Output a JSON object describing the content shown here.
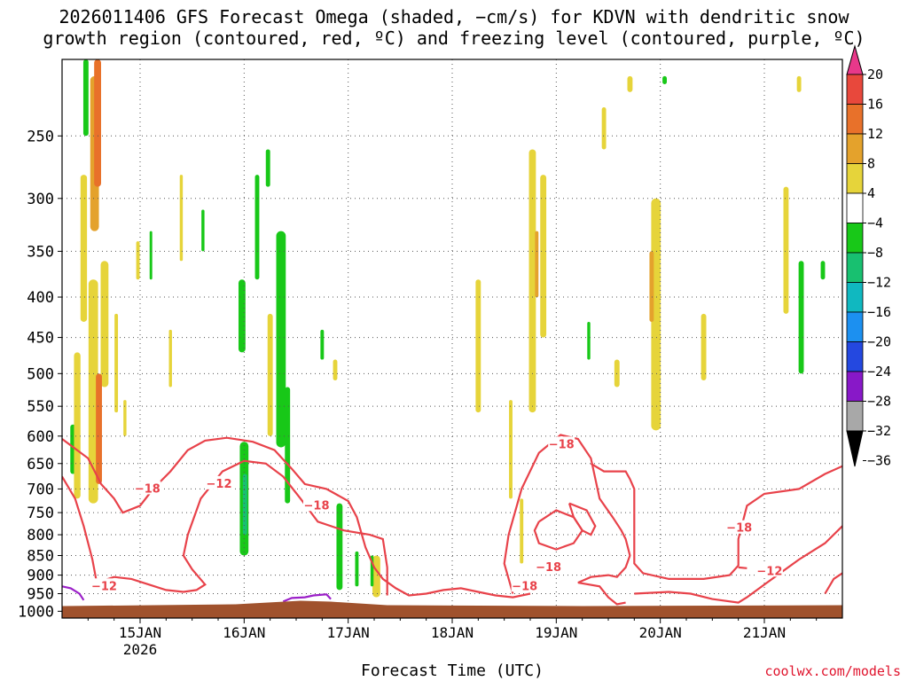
{
  "title": {
    "line1": "2026011406 GFS Forecast Omega (shaded, −cm/s) for KDVN with dendritic snow",
    "line2": "growth region (contoured, red, ºC) and freezing level (contoured, purple, ºC)"
  },
  "credit": "coolwx.com/models",
  "chart_data": {
    "type": "heatmap",
    "title": "2026011406 GFS Forecast Omega (shaded, −cm/s) for KDVN with dendritic snow growth region (contoured, red, ºC) and freezing level (contoured, purple, ºC)",
    "xlabel": "Forecast Time (UTC)",
    "ylabel": "",
    "x_ticks": [
      {
        "label": "15JAN",
        "sublabel": "2026",
        "hours": 18
      },
      {
        "label": "16JAN",
        "hours": 42
      },
      {
        "label": "17JAN",
        "hours": 66
      },
      {
        "label": "18JAN",
        "hours": 90
      },
      {
        "label": "19JAN",
        "hours": 114
      },
      {
        "label": "20JAN",
        "hours": 138
      },
      {
        "label": "21JAN",
        "hours": 162
      }
    ],
    "xlim_hours": [
      0,
      180
    ],
    "y_axis": {
      "scale": "log-pressure",
      "units": "hPa",
      "ylim": [
        1020,
        200
      ],
      "ticks": [
        250,
        300,
        350,
        400,
        450,
        500,
        550,
        600,
        650,
        700,
        750,
        800,
        850,
        900,
        950,
        1000
      ]
    },
    "grid": true,
    "colorbar": {
      "labels": [
        "20",
        "16",
        "12",
        "8",
        "4",
        "−4",
        "−8",
        "−12",
        "−16",
        "−20",
        "−24",
        "−28",
        "−32",
        "−36"
      ],
      "colors": [
        "#e8388a",
        "#e8483c",
        "#e8712a",
        "#e4a22c",
        "#e6d43a",
        "#ffffff",
        "#18c818",
        "#18c070",
        "#10b8c0",
        "#1c90f0",
        "#2448e0",
        "#8818c8",
        "#a8a8a8",
        "#000000"
      ]
    },
    "omega_patches": [
      {
        "t": 2.5,
        "p0": 580,
        "p1": 670,
        "w": 1.2,
        "v": -6
      },
      {
        "t": 3.5,
        "p0": 470,
        "p1": 720,
        "w": 1.5,
        "v": 6
      },
      {
        "t": 5.0,
        "p0": 280,
        "p1": 430,
        "w": 1.5,
        "v": 5
      },
      {
        "t": 5.5,
        "p0": 200,
        "p1": 250,
        "w": 1.2,
        "v": -6
      },
      {
        "t": 7.2,
        "p0": 380,
        "p1": 730,
        "w": 2.2,
        "v": 6
      },
      {
        "t": 7.5,
        "p0": 210,
        "p1": 330,
        "w": 2.0,
        "v": 8
      },
      {
        "t": 8.2,
        "p0": 200,
        "p1": 290,
        "w": 1.6,
        "v": 12
      },
      {
        "t": 9.8,
        "p0": 360,
        "p1": 520,
        "w": 1.8,
        "v": 7
      },
      {
        "t": 8.5,
        "p0": 500,
        "p1": 690,
        "w": 1.4,
        "v": 12
      },
      {
        "t": 12.5,
        "p0": 420,
        "p1": 560,
        "w": 0.8,
        "v": 5
      },
      {
        "t": 14.5,
        "p0": 540,
        "p1": 600,
        "w": 0.7,
        "v": 5
      },
      {
        "t": 17.5,
        "p0": 340,
        "p1": 380,
        "w": 0.8,
        "v": 5
      },
      {
        "t": 20.5,
        "p0": 330,
        "p1": 380,
        "w": 0.6,
        "v": -6
      },
      {
        "t": 25.0,
        "p0": 440,
        "p1": 520,
        "w": 0.7,
        "v": 5
      },
      {
        "t": 27.5,
        "p0": 280,
        "p1": 360,
        "w": 0.7,
        "v": 5
      },
      {
        "t": 32.5,
        "p0": 310,
        "p1": 350,
        "w": 0.7,
        "v": -6
      },
      {
        "t": 41.5,
        "p0": 380,
        "p1": 470,
        "w": 1.6,
        "v": -6
      },
      {
        "t": 42.0,
        "p0": 610,
        "p1": 850,
        "w": 2.0,
        "v": -7
      },
      {
        "t": 42.2,
        "p0": 670,
        "p1": 800,
        "w": 1.0,
        "v": -10
      },
      {
        "t": 45.0,
        "p0": 280,
        "p1": 380,
        "w": 1.0,
        "v": -6
      },
      {
        "t": 47.5,
        "p0": 260,
        "p1": 290,
        "w": 1.0,
        "v": -6
      },
      {
        "t": 50.5,
        "p0": 330,
        "p1": 620,
        "w": 2.2,
        "v": -7
      },
      {
        "t": 48.0,
        "p0": 420,
        "p1": 600,
        "w": 1.2,
        "v": 5
      },
      {
        "t": 52.0,
        "p0": 520,
        "p1": 730,
        "w": 1.2,
        "v": -7
      },
      {
        "t": 60.0,
        "p0": 440,
        "p1": 480,
        "w": 0.8,
        "v": -6
      },
      {
        "t": 63.0,
        "p0": 480,
        "p1": 510,
        "w": 1.0,
        "v": 5
      },
      {
        "t": 64.0,
        "p0": 730,
        "p1": 940,
        "w": 1.4,
        "v": -7
      },
      {
        "t": 68.0,
        "p0": 840,
        "p1": 930,
        "w": 0.8,
        "v": -6
      },
      {
        "t": 72.5,
        "p0": 850,
        "p1": 960,
        "w": 1.8,
        "v": 6
      },
      {
        "t": 71.5,
        "p0": 850,
        "p1": 930,
        "w": 0.7,
        "v": -6
      },
      {
        "t": 96.0,
        "p0": 380,
        "p1": 560,
        "w": 1.2,
        "v": 5
      },
      {
        "t": 103.5,
        "p0": 540,
        "p1": 720,
        "w": 0.8,
        "v": 5
      },
      {
        "t": 106.0,
        "p0": 720,
        "p1": 870,
        "w": 0.8,
        "v": 5
      },
      {
        "t": 108.5,
        "p0": 260,
        "p1": 560,
        "w": 1.6,
        "v": 5
      },
      {
        "t": 111.0,
        "p0": 280,
        "p1": 450,
        "w": 1.4,
        "v": 5
      },
      {
        "t": 109.5,
        "p0": 330,
        "p1": 400,
        "w": 0.8,
        "v": 10
      },
      {
        "t": 121.5,
        "p0": 430,
        "p1": 480,
        "w": 0.7,
        "v": -6
      },
      {
        "t": 125.0,
        "p0": 230,
        "p1": 260,
        "w": 1.0,
        "v": 5
      },
      {
        "t": 128.0,
        "p0": 480,
        "p1": 520,
        "w": 1.2,
        "v": 5
      },
      {
        "t": 131.0,
        "p0": 210,
        "p1": 220,
        "w": 1.2,
        "v": 5
      },
      {
        "t": 137.0,
        "p0": 300,
        "p1": 590,
        "w": 2.2,
        "v": 5
      },
      {
        "t": 136.0,
        "p0": 350,
        "p1": 430,
        "w": 1.0,
        "v": 11
      },
      {
        "t": 148.0,
        "p0": 420,
        "p1": 510,
        "w": 1.2,
        "v": 5
      },
      {
        "t": 167.0,
        "p0": 290,
        "p1": 420,
        "w": 1.2,
        "v": 5
      },
      {
        "t": 170.5,
        "p0": 360,
        "p1": 500,
        "w": 1.2,
        "v": -6
      },
      {
        "t": 170.0,
        "p0": 210,
        "p1": 220,
        "w": 1.0,
        "v": 5
      },
      {
        "t": 175.5,
        "p0": 360,
        "p1": 380,
        "w": 1.0,
        "v": -6
      },
      {
        "t": 139.0,
        "p0": 210,
        "p1": 215,
        "w": 1.0,
        "v": -6
      }
    ],
    "dendritic_contours": {
      "color": "#e8424a",
      "labels": [
        {
          "text": "−18",
          "t": 19.5,
          "p": 700
        },
        {
          "text": "−12",
          "t": 36.0,
          "p": 690
        },
        {
          "text": "−12",
          "t": 9.5,
          "p": 930
        },
        {
          "text": "−18",
          "t": 58.5,
          "p": 735
        },
        {
          "text": "−18",
          "t": 115.0,
          "p": 615
        },
        {
          "text": "−18",
          "t": 112.0,
          "p": 880
        },
        {
          "text": "−18",
          "t": 106.5,
          "p": 930
        },
        {
          "text": "−18",
          "t": 156.0,
          "p": 785
        },
        {
          "text": "−12",
          "t": 163.0,
          "p": 890
        }
      ],
      "lines": [
        [
          [
            0,
            605
          ],
          [
            6,
            640
          ],
          [
            9,
            690
          ],
          [
            12,
            720
          ],
          [
            14,
            750
          ],
          [
            18,
            735
          ],
          [
            21,
            700
          ],
          [
            25,
            665
          ],
          [
            29,
            625
          ],
          [
            33,
            608
          ],
          [
            38,
            603
          ],
          [
            44,
            610
          ],
          [
            49,
            625
          ],
          [
            53,
            660
          ],
          [
            56,
            690
          ],
          [
            61,
            700
          ],
          [
            66,
            725
          ],
          [
            68,
            760
          ],
          [
            70,
            830
          ],
          [
            72,
            880
          ],
          [
            74,
            910
          ],
          [
            77,
            935
          ],
          [
            80,
            955
          ],
          [
            84,
            950
          ],
          [
            88,
            940
          ],
          [
            92,
            935
          ],
          [
            96,
            945
          ],
          [
            100,
            955
          ],
          [
            104,
            960
          ],
          [
            108,
            950
          ]
        ],
        [
          [
            0,
            675
          ],
          [
            3,
            720
          ],
          [
            5,
            780
          ],
          [
            7,
            860
          ],
          [
            8,
            920
          ]
        ],
        [
          [
            8,
            920
          ],
          [
            12,
            905
          ],
          [
            16,
            910
          ],
          [
            20,
            925
          ],
          [
            24,
            940
          ],
          [
            28,
            945
          ],
          [
            31,
            940
          ],
          [
            33,
            925
          ],
          [
            30,
            885
          ],
          [
            28,
            850
          ],
          [
            29,
            800
          ],
          [
            32,
            720
          ],
          [
            37,
            665
          ],
          [
            42,
            645
          ],
          [
            47,
            650
          ],
          [
            51,
            675
          ],
          [
            55,
            720
          ],
          [
            59,
            770
          ],
          [
            65,
            790
          ],
          [
            71,
            800
          ],
          [
            74,
            810
          ],
          [
            75,
            880
          ],
          [
            75,
            955
          ]
        ],
        [
          [
            104,
            950
          ],
          [
            102,
            870
          ],
          [
            103,
            800
          ],
          [
            106,
            700
          ],
          [
            110,
            630
          ],
          [
            115,
            598
          ],
          [
            119,
            605
          ],
          [
            122,
            640
          ],
          [
            124,
            720
          ],
          [
            127,
            760
          ],
          [
            129,
            790
          ],
          [
            130,
            810
          ],
          [
            131,
            850
          ],
          [
            130,
            880
          ],
          [
            128,
            905
          ],
          [
            126,
            900
          ],
          [
            122,
            905
          ],
          [
            119,
            920
          ]
        ],
        [
          [
            110,
            770
          ],
          [
            114,
            745
          ],
          [
            118,
            760
          ],
          [
            120,
            790
          ],
          [
            118,
            820
          ],
          [
            114,
            835
          ],
          [
            110,
            820
          ],
          [
            109,
            790
          ],
          [
            110,
            770
          ]
        ],
        [
          [
            117,
            730
          ],
          [
            121,
            745
          ],
          [
            123,
            780
          ],
          [
            122,
            800
          ],
          [
            120,
            790
          ],
          [
            118,
            760
          ],
          [
            117,
            730
          ]
        ],
        [
          [
            119,
            920
          ],
          [
            124,
            930
          ],
          [
            126,
            960
          ],
          [
            128,
            980
          ],
          [
            130,
            975
          ]
        ],
        [
          [
            122,
            650
          ],
          [
            125,
            665
          ],
          [
            130,
            665
          ],
          [
            131,
            680
          ],
          [
            132,
            700
          ],
          [
            132,
            800
          ],
          [
            132,
            870
          ],
          [
            134,
            895
          ],
          [
            140,
            910
          ],
          [
            148,
            910
          ],
          [
            154,
            900
          ],
          [
            156,
            875
          ],
          [
            156,
            810
          ],
          [
            158,
            735
          ],
          [
            162,
            710
          ],
          [
            170,
            700
          ],
          [
            176,
            670
          ],
          [
            180,
            655
          ]
        ],
        [
          [
            132,
            950
          ],
          [
            140,
            945
          ],
          [
            145,
            950
          ],
          [
            150,
            965
          ],
          [
            156,
            975
          ],
          [
            158,
            960
          ],
          [
            162,
            925
          ],
          [
            170,
            860
          ],
          [
            176,
            820
          ],
          [
            180,
            780
          ]
        ],
        [
          [
            176,
            950
          ],
          [
            178,
            910
          ],
          [
            180,
            895
          ]
        ],
        [
          [
            156,
            880
          ],
          [
            158,
            882
          ]
        ]
      ]
    },
    "freezing_level": {
      "color": "#9b20c8",
      "lines": [
        [
          [
            0,
            930
          ],
          [
            2,
            935
          ],
          [
            4,
            950
          ],
          [
            5,
            968
          ]
        ],
        [
          [
            51,
            972
          ],
          [
            53,
            962
          ],
          [
            56,
            960
          ],
          [
            58,
            955
          ],
          [
            61,
            952
          ],
          [
            62,
            965
          ]
        ]
      ]
    },
    "terrain": {
      "color": "#a0522d",
      "top_hpa": 980
    }
  }
}
